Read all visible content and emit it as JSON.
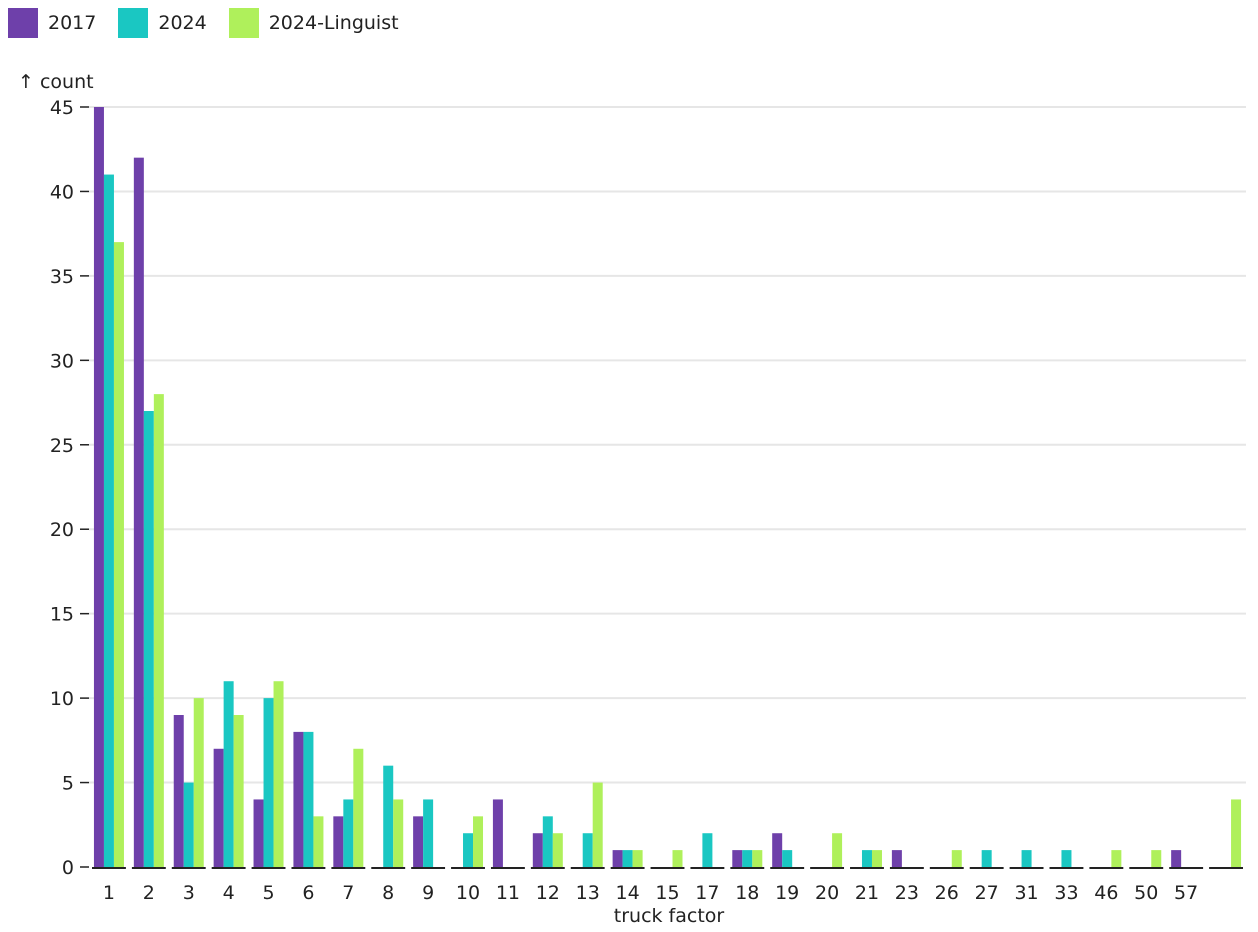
{
  "chart_data": {
    "type": "bar",
    "title": "",
    "xlabel": "truck factor",
    "ylabel": "↑ count",
    "ylim": [
      0,
      45
    ],
    "yticks": [
      0,
      5,
      10,
      15,
      20,
      25,
      30,
      35,
      40,
      45
    ],
    "grid": true,
    "legend": "top-left",
    "categories": [
      "1",
      "2",
      "3",
      "4",
      "5",
      "6",
      "7",
      "8",
      "9",
      "10",
      "11",
      "12",
      "13",
      "14",
      "15",
      "17",
      "18",
      "19",
      "20",
      "21",
      "23",
      "26",
      "27",
      "31",
      "33",
      "46",
      "50",
      "57",
      ""
    ],
    "series": [
      {
        "name": "2017",
        "color": "#6e40aa",
        "values": [
          45,
          42,
          9,
          7,
          4,
          8,
          3,
          0,
          3,
          0,
          4,
          2,
          0,
          1,
          0,
          0,
          1,
          2,
          0,
          0,
          1,
          0,
          0,
          0,
          0,
          0,
          0,
          1,
          0
        ]
      },
      {
        "name": "2024",
        "color": "#1ac7c2",
        "values": [
          41,
          27,
          5,
          11,
          10,
          8,
          4,
          6,
          4,
          2,
          0,
          3,
          2,
          1,
          0,
          2,
          1,
          1,
          0,
          1,
          0,
          0,
          1,
          1,
          1,
          0,
          0,
          0,
          0
        ]
      },
      {
        "name": "2024-Linguist",
        "color": "#aff05b",
        "values": [
          37,
          28,
          10,
          9,
          11,
          3,
          7,
          4,
          0,
          3,
          0,
          2,
          5,
          1,
          1,
          0,
          1,
          0,
          2,
          1,
          0,
          1,
          0,
          0,
          0,
          1,
          1,
          0,
          4
        ]
      }
    ]
  }
}
